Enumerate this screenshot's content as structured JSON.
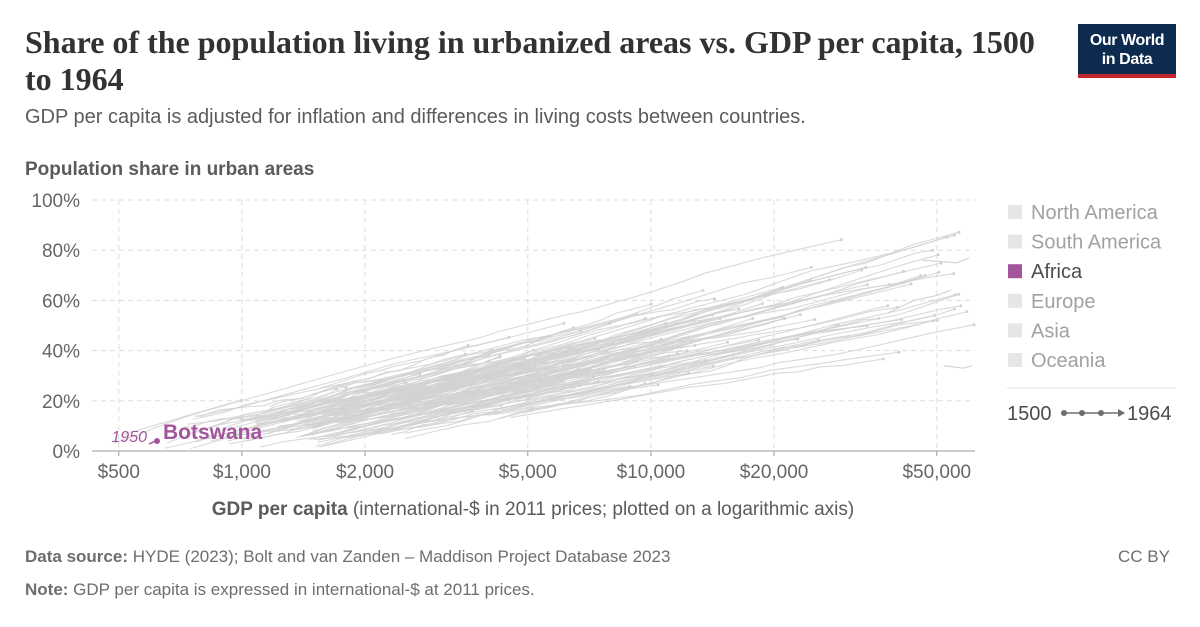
{
  "header": {
    "title": "Share of the population living in urbanized areas vs. GDP per capita, 1500 to 1964",
    "subtitle": "GDP per capita is adjusted for inflation and differences in living costs between countries."
  },
  "logo": {
    "line1": "Our World",
    "line2": "in Data",
    "bg_color": "#0d2b4e",
    "accent_color": "#c2272d"
  },
  "chart_data": {
    "type": "scatter",
    "ylabel": "Population share in urban areas",
    "xlabel_bold": "GDP per capita",
    "xlabel_rest": " (international-$ in 2011 prices; plotted on a logarithmic axis)",
    "x_scale": "log",
    "xlim": [
      430,
      62000
    ],
    "ylim": [
      0,
      100
    ],
    "grid": true,
    "x_ticks": [
      {
        "value": 500,
        "label": "$500"
      },
      {
        "value": 1000,
        "label": "$1,000"
      },
      {
        "value": 2000,
        "label": "$2,000"
      },
      {
        "value": 5000,
        "label": "$5,000"
      },
      {
        "value": 10000,
        "label": "$10,000"
      },
      {
        "value": 20000,
        "label": "$20,000"
      },
      {
        "value": 50000,
        "label": "$50,000"
      }
    ],
    "y_ticks": [
      {
        "value": 0,
        "label": "0%"
      },
      {
        "value": 20,
        "label": "20%"
      },
      {
        "value": 40,
        "label": "40%"
      },
      {
        "value": 60,
        "label": "60%"
      },
      {
        "value": 80,
        "label": "80%"
      },
      {
        "value": 100,
        "label": "100%"
      }
    ],
    "legend_placement": "right",
    "legend": [
      {
        "name": "North America",
        "color": "#e6e6e6",
        "text_color": "#a1a1a1"
      },
      {
        "name": "South America",
        "color": "#e6e6e6",
        "text_color": "#a1a1a1"
      },
      {
        "name": "Africa",
        "color": "#a2559c",
        "text_color": "#4d4d4d"
      },
      {
        "name": "Europe",
        "color": "#e6e6e6",
        "text_color": "#a1a1a1"
      },
      {
        "name": "Asia",
        "color": "#e6e6e6",
        "text_color": "#a1a1a1"
      },
      {
        "name": "Oceania",
        "color": "#e6e6e6",
        "text_color": "#a1a1a1"
      }
    ],
    "timeline": {
      "start": "1500",
      "end": "1964"
    },
    "highlight": {
      "name": "Botswana",
      "year_label": "1950",
      "gdp": 620,
      "urban_share": 4,
      "color": "#a2559c"
    },
    "background_trajectory_color": "#d2d2d2"
  },
  "footer": {
    "source_label": "Data source:",
    "source_text": " HYDE (2023); Bolt and van Zanden – Maddison Project Database 2023",
    "note_label": "Note:",
    "note_text": " GDP per capita is expressed in international-$ at 2011 prices.",
    "license": "CC BY"
  }
}
